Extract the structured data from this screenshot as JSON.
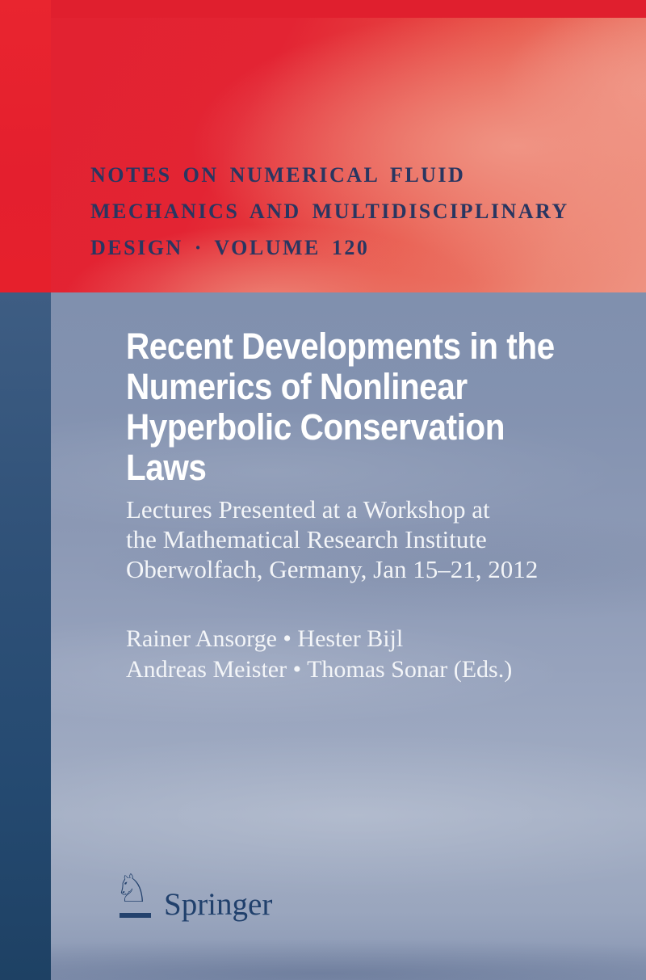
{
  "series": {
    "line1": "NOTES ON NUMERICAL FLUID",
    "line2": "MECHANICS AND MULTIDISCIPLINARY",
    "line3": "DESIGN · VOLUME 120"
  },
  "title": {
    "line1": "Recent Developments in the",
    "line2": "Numerics of Nonlinear",
    "line3": "Hyperbolic Conservation Laws"
  },
  "subtitle": {
    "line1": "Lectures Presented at a Workshop at",
    "line2": "the Mathematical Research Institute",
    "line3": "Oberwolfach, Germany, Jan 15–21, 2012"
  },
  "editors": {
    "line1": "Rainer Ansorge • Hester Bijl",
    "line2": "Andreas Meister • Thomas Sonar (Eds.)"
  },
  "publisher": {
    "name": "Springer",
    "logo_icon": "chess-knight",
    "logo_glyph": "♘"
  },
  "colors": {
    "red": "#e32330",
    "salmon": "#ee9281",
    "series_navy": "#293661",
    "left_strip_blue": "#2e5077",
    "background_blue": "#97a3bd",
    "title_white": "#ffffff",
    "logo_navy": "#24426d"
  }
}
